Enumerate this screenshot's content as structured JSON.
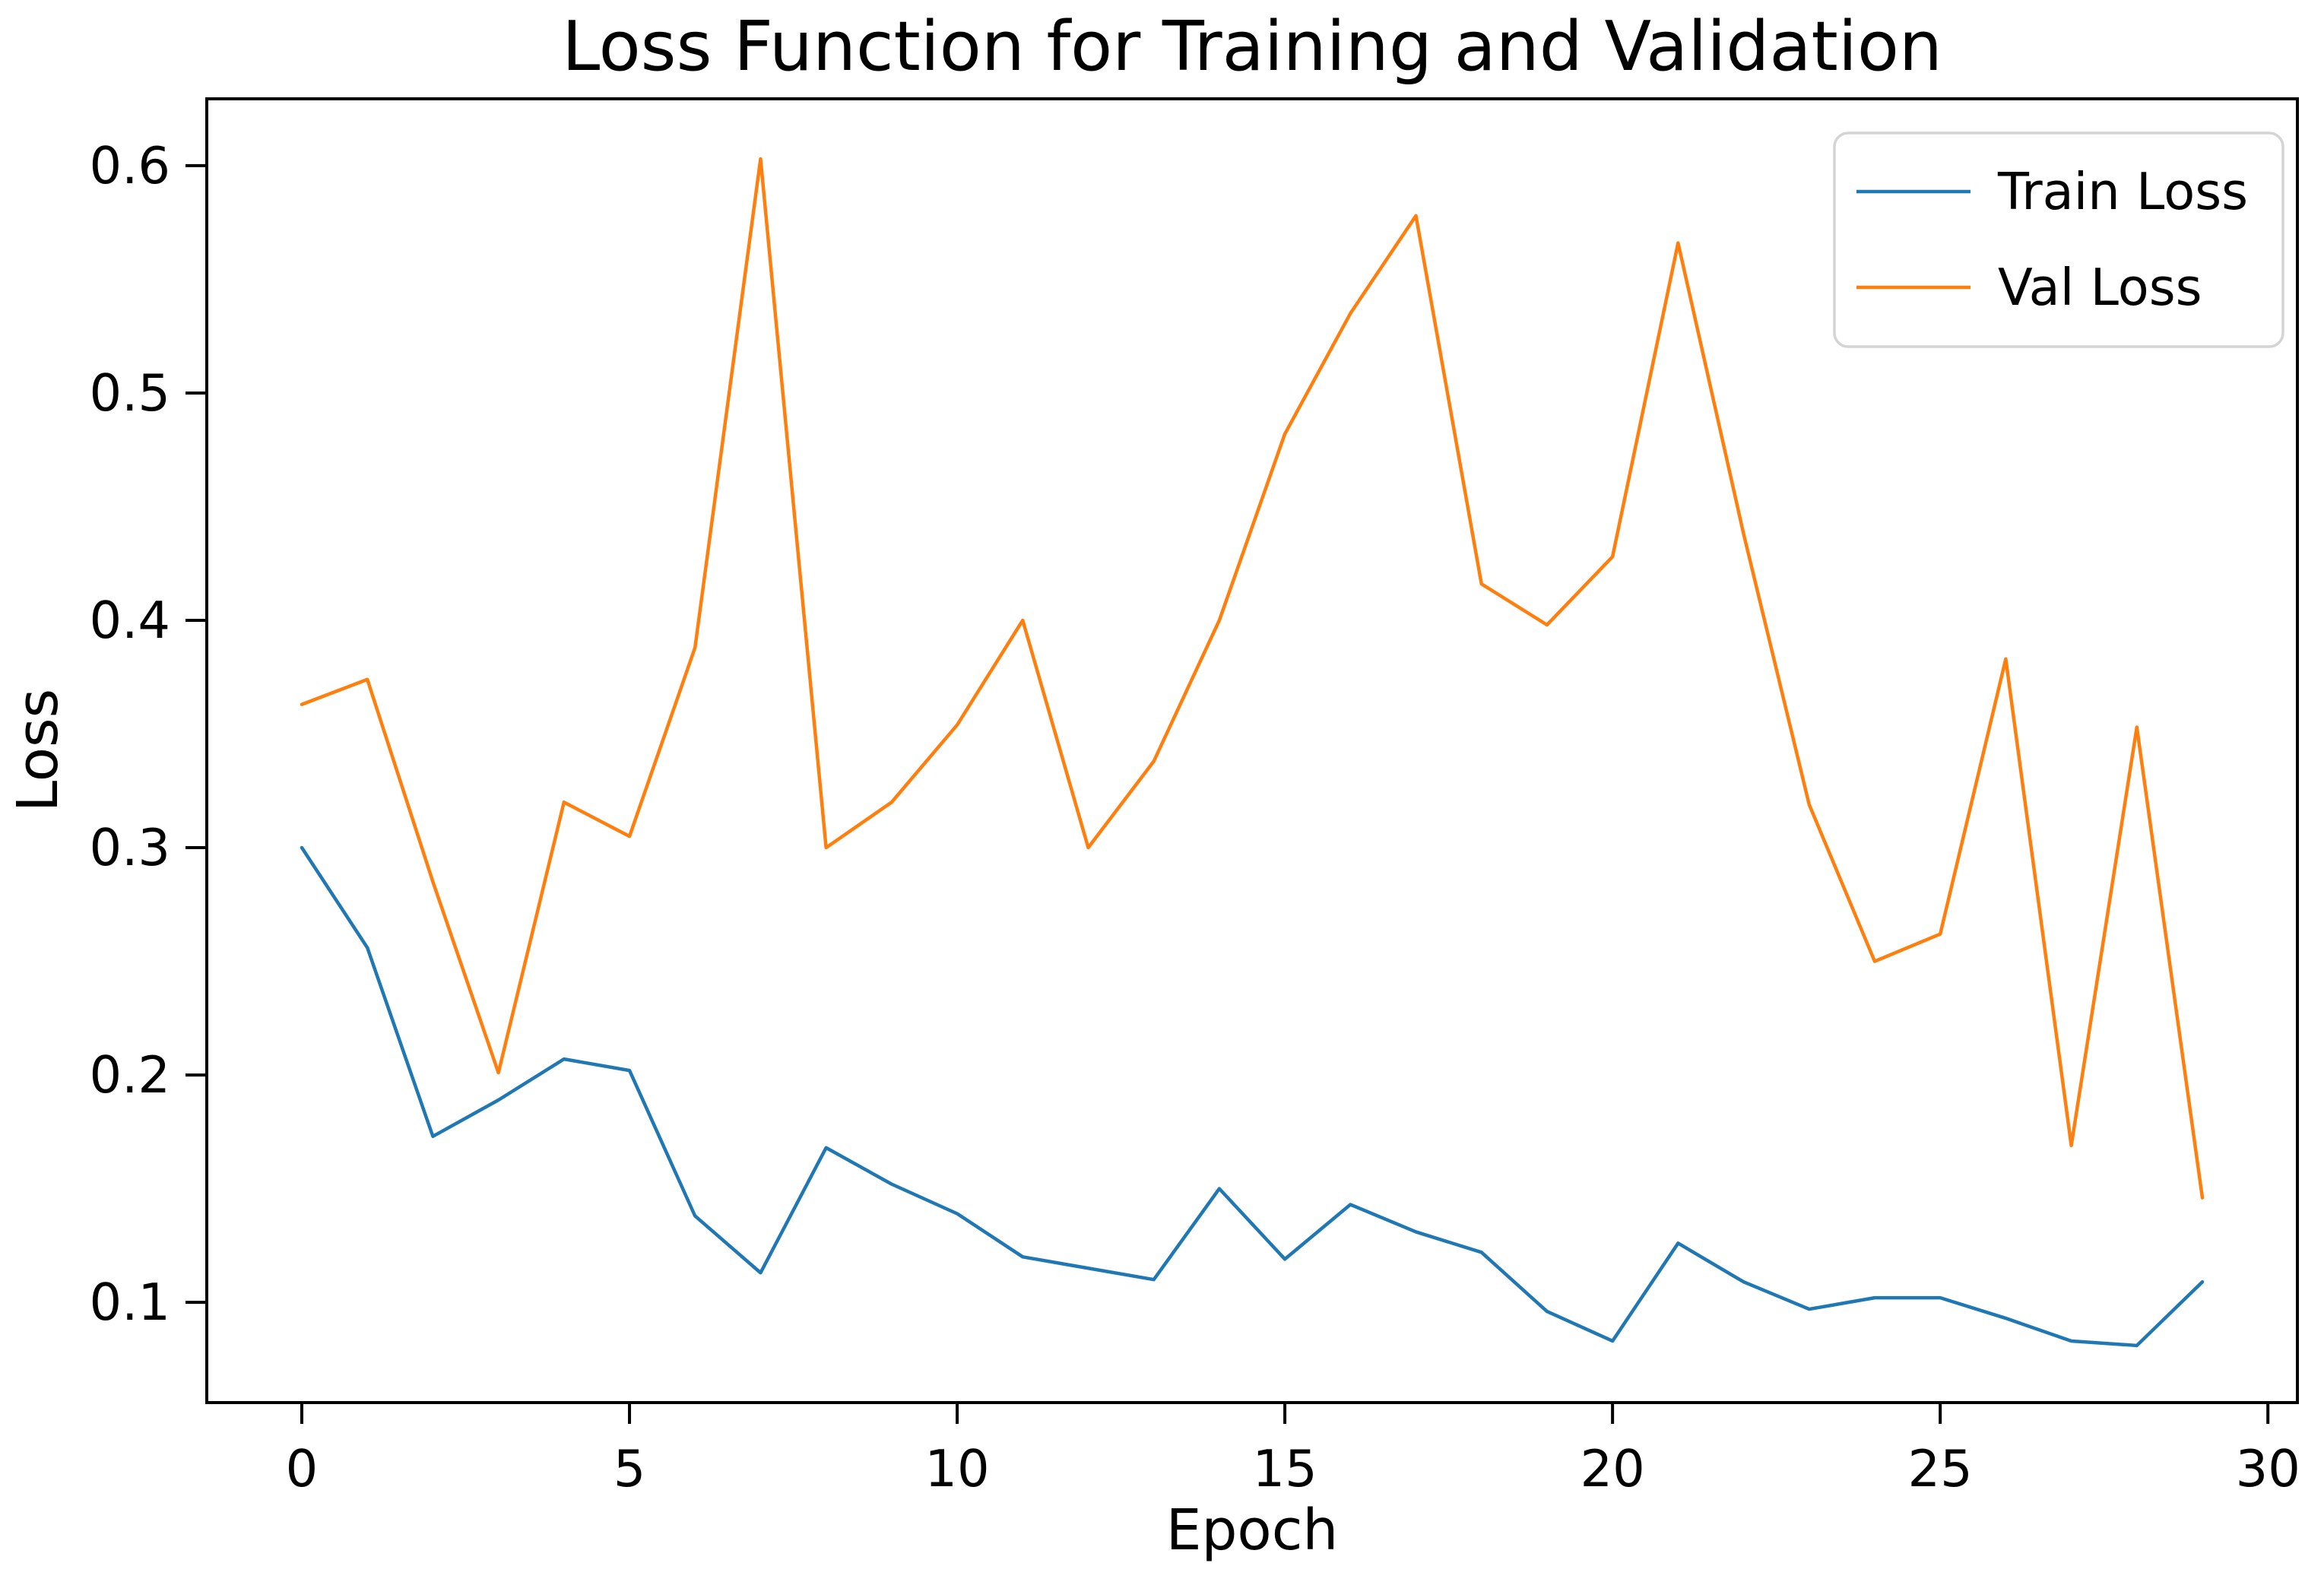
{
  "chart_data": {
    "type": "line",
    "title": "Loss Function for Training and Validation",
    "xlabel": "Epoch",
    "ylabel": "Loss",
    "x": [
      0,
      1,
      2,
      3,
      4,
      5,
      6,
      7,
      8,
      9,
      10,
      11,
      12,
      13,
      14,
      15,
      16,
      17,
      18,
      19,
      20,
      21,
      22,
      23,
      24,
      25,
      26,
      27,
      28,
      29
    ],
    "series": [
      {
        "name": "Train Loss",
        "color": "#1f77b4",
        "values": [
          0.3,
          0.256,
          0.173,
          0.189,
          0.207,
          0.202,
          0.138,
          0.113,
          0.168,
          0.152,
          0.139,
          0.12,
          0.115,
          0.11,
          0.15,
          0.119,
          0.143,
          0.131,
          0.122,
          0.096,
          0.083,
          0.126,
          0.109,
          0.097,
          0.102,
          0.102,
          0.093,
          0.083,
          0.081,
          0.109
        ]
      },
      {
        "name": "Val Loss",
        "color": "#ff7f0e",
        "values": [
          0.363,
          0.374,
          0.285,
          0.201,
          0.32,
          0.305,
          0.388,
          0.603,
          0.3,
          0.32,
          0.354,
          0.4,
          0.3,
          0.338,
          0.4,
          0.482,
          0.535,
          0.578,
          0.416,
          0.398,
          0.428,
          0.566,
          0.438,
          0.319,
          0.25,
          0.262,
          0.383,
          0.169,
          0.353,
          0.146
        ]
      }
    ],
    "xlim": [
      -1.45,
      30.45
    ],
    "ylim": [
      0.0559,
      0.6294
    ],
    "xticks": [
      0,
      5,
      10,
      15,
      20,
      25,
      30
    ],
    "yticks": [
      0.1,
      0.2,
      0.3,
      0.4,
      0.5,
      0.6
    ],
    "grid": false,
    "legend_position": "upper right",
    "axis_color": "#000000",
    "legend_border_color": "#d4d4d4",
    "background": "#ffffff"
  }
}
